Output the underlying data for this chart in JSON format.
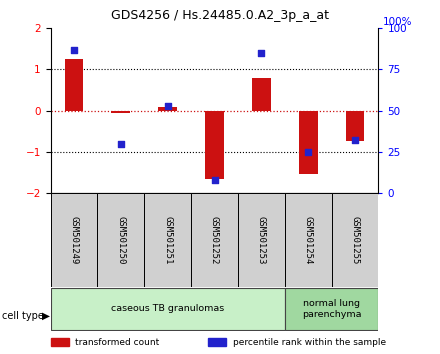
{
  "title": "GDS4256 / Hs.24485.0.A2_3p_a_at",
  "samples": [
    "GSM501249",
    "GSM501250",
    "GSM501251",
    "GSM501252",
    "GSM501253",
    "GSM501254",
    "GSM501255"
  ],
  "transformed_counts": [
    1.25,
    -0.05,
    0.1,
    -1.65,
    0.8,
    -1.55,
    -0.75
  ],
  "percentile_ranks": [
    87,
    30,
    53,
    8,
    85,
    25,
    32
  ],
  "cell_type_groups": [
    {
      "label": "caseous TB granulomas",
      "samples": [
        0,
        1,
        2,
        3,
        4
      ],
      "color": "#c8f0c8"
    },
    {
      "label": "normal lung\nparenchyma",
      "samples": [
        5,
        6
      ],
      "color": "#a0d8a0"
    }
  ],
  "ylim": [
    -2,
    2
  ],
  "yticks_left": [
    -2,
    -1,
    0,
    1,
    2
  ],
  "yticks_right": [
    0,
    25,
    50,
    75,
    100
  ],
  "bar_color": "#cc1111",
  "dot_color": "#2222cc",
  "zero_line_color": "#cc1111",
  "grid_color": "#000000",
  "background_color": "#ffffff",
  "legend_items": [
    {
      "label": "transformed count",
      "color": "#cc1111"
    },
    {
      "label": "percentile rank within the sample",
      "color": "#2222cc"
    }
  ]
}
